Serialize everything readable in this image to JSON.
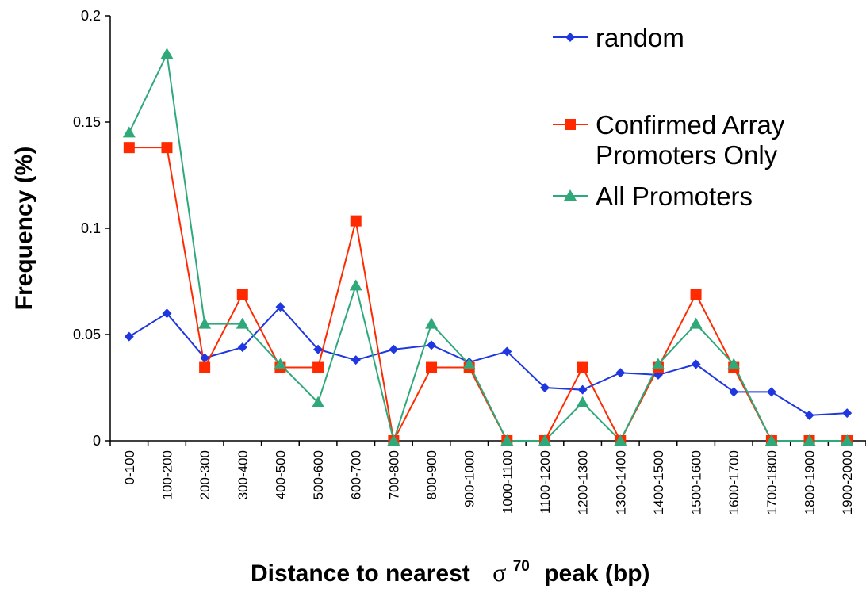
{
  "chart_data": {
    "type": "line",
    "xlabel_prefix": "Distance to nearest",
    "xlabel_symbol": "σ",
    "xlabel_superscript": "70",
    "xlabel_suffix": "peak (bp)",
    "ylabel": "Frequency (%)",
    "ylim": [
      0,
      0.2
    ],
    "yticks": [
      "0",
      "0.05",
      "0.1",
      "0.15",
      "0.2"
    ],
    "ytick_values": [
      0,
      0.05,
      0.1,
      0.15,
      0.2
    ],
    "grid": false,
    "legend_position": "top-right",
    "categories": [
      "0-100",
      "100-200",
      "200-300",
      "300-400",
      "400-500",
      "500-600",
      "600-700",
      "700-800",
      "800-900",
      "900-1000",
      "1000-1100",
      "1100-1200",
      "1200-1300",
      "1300-1400",
      "1400-1500",
      "1500-1600",
      "1600-1700",
      "1700-1800",
      "1800-1900",
      "1900-2000"
    ],
    "series": [
      {
        "name": "random",
        "color": "#1f37e0",
        "marker": "diamond",
        "values": [
          0.049,
          0.06,
          0.039,
          0.044,
          0.063,
          0.043,
          0.038,
          0.043,
          0.045,
          0.037,
          0.042,
          0.025,
          0.024,
          0.032,
          0.031,
          0.036,
          0.023,
          0.023,
          0.012,
          0.013
        ]
      },
      {
        "name": "Confirmed Array Promoters Only",
        "legend_lines": [
          "Confirmed Array",
          "Promoters Only"
        ],
        "color": "#ff2a00",
        "marker": "square",
        "values": [
          0.138,
          0.138,
          0.0345,
          0.069,
          0.0345,
          0.0345,
          0.1035,
          0,
          0.0345,
          0.0345,
          0,
          0,
          0.0345,
          0,
          0.0345,
          0.069,
          0.0345,
          0,
          0,
          0
        ]
      },
      {
        "name": "All Promoters",
        "color": "#2fa97a",
        "marker": "triangle",
        "values": [
          0.145,
          0.182,
          0.055,
          0.055,
          0.036,
          0.018,
          0.073,
          0,
          0.055,
          0.036,
          0,
          0,
          0.018,
          0,
          0.036,
          0.055,
          0.036,
          0,
          0,
          0
        ]
      }
    ]
  }
}
